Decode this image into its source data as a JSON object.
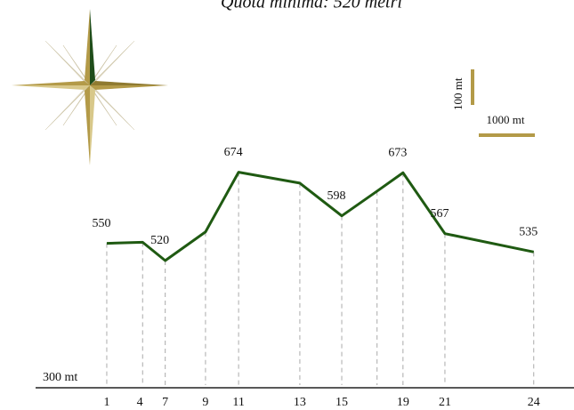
{
  "chart_data": {
    "type": "line",
    "title": "Quota minima: 520 metri",
    "x": [
      0,
      0.65,
      1.06,
      1.79,
      2.39,
      3.5,
      4.26,
      4.9,
      5.37,
      6.13,
      7.74
    ],
    "series": [
      {
        "color": "#1f5a12",
        "values": [
          550,
          552,
          520,
          570,
          674,
          655,
          598,
          641,
          673,
          567,
          535
        ],
        "value_labels": [
          "550",
          null,
          "520",
          null,
          "674",
          null,
          "598",
          null,
          "673",
          "567",
          "535"
        ]
      }
    ],
    "xlim": [
      -1.29,
      8.47
    ],
    "ylim": [
      300,
      974
    ],
    "xticks": [
      {
        "value": 0,
        "label": "1"
      },
      {
        "value": 0.6,
        "label": "4"
      },
      {
        "value": 1.06,
        "label": "7"
      },
      {
        "value": 1.79,
        "label": "9"
      },
      {
        "value": 2.39,
        "label": "11"
      },
      {
        "value": 3.5,
        "label": "13"
      },
      {
        "value": 4.26,
        "label": "15"
      },
      {
        "value": 5.37,
        "label": "19"
      },
      {
        "value": 6.13,
        "label": "21"
      },
      {
        "value": 7.74,
        "label": "24"
      }
    ],
    "yticks": [
      {
        "value": 300,
        "label": "300 mt"
      }
    ],
    "scale_labels": [
      "100 mt",
      "1000 mt"
    ]
  }
}
